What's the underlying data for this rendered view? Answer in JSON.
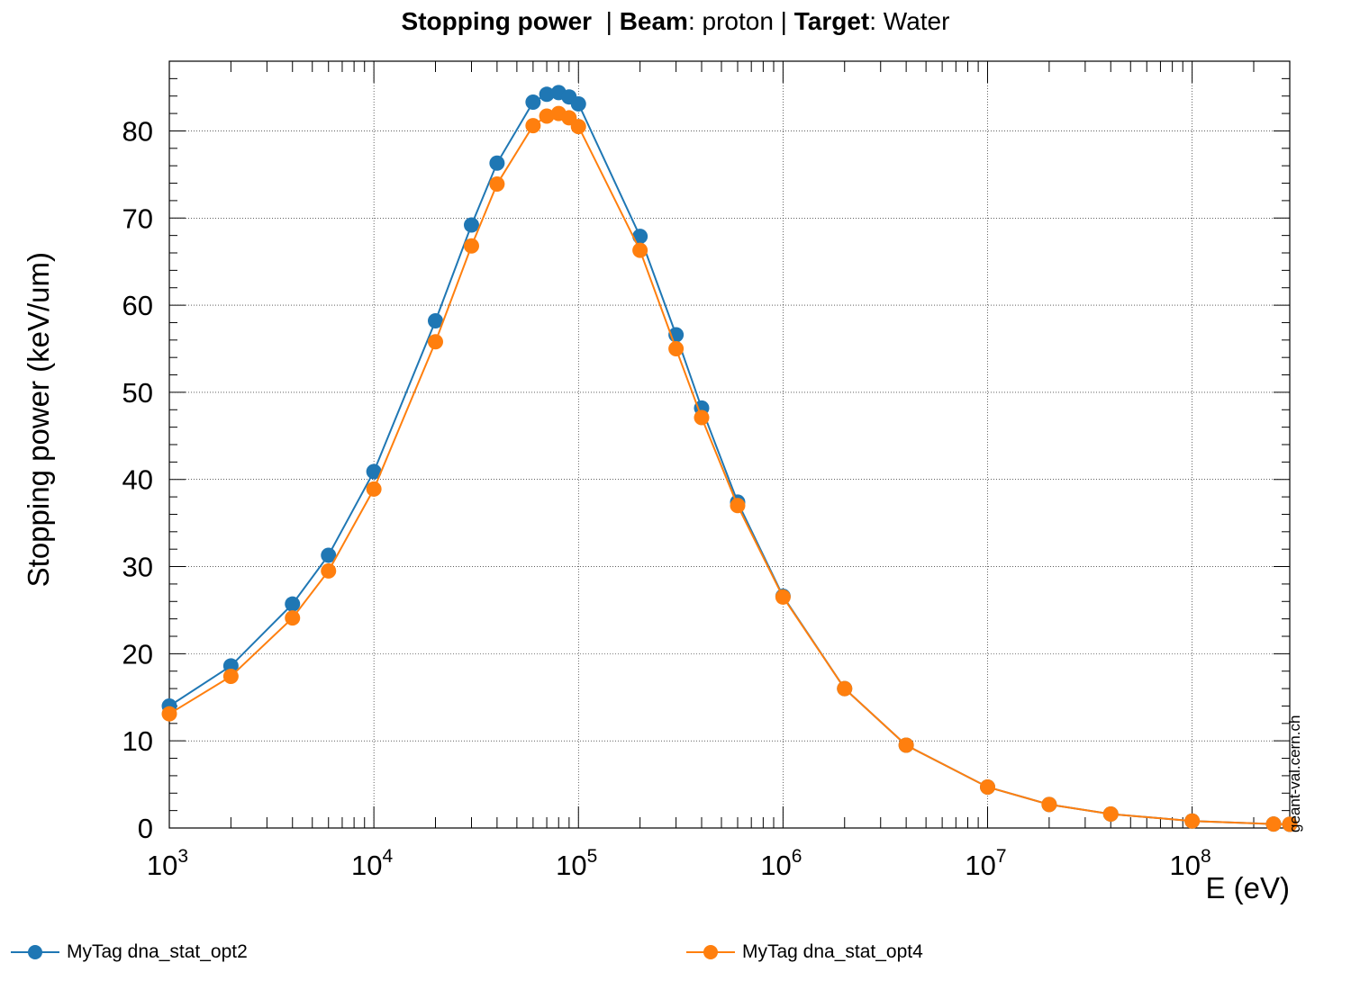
{
  "title_parts": {
    "part1_bold": "Stopping power",
    "sep1": "  | ",
    "part2_bold": "Beam",
    "part2_rest": ": proton | ",
    "part3_bold": "Target",
    "part3_rest": ": Water"
  },
  "watermark": "geant-val.cern.ch",
  "colors": {
    "series1": "#1f77b4",
    "series2": "#ff7f0e"
  },
  "chart_data": {
    "type": "line",
    "xlabel": "E (eV)",
    "ylabel": "Stopping power (keV/um)",
    "x_scale": "log",
    "xlim": [
      1000,
      300000000
    ],
    "ylim": [
      0,
      88
    ],
    "grid": true,
    "legend_position": "bottom",
    "y_ticks": [
      0,
      10,
      20,
      30,
      40,
      50,
      60,
      70,
      80
    ],
    "x_ticks": [
      {
        "value": 1000,
        "base": "10",
        "exp": "3"
      },
      {
        "value": 10000,
        "base": "10",
        "exp": "4"
      },
      {
        "value": 100000,
        "base": "10",
        "exp": "5"
      },
      {
        "value": 1000000,
        "base": "10",
        "exp": "6"
      },
      {
        "value": 10000000,
        "base": "10",
        "exp": "7"
      },
      {
        "value": 100000000,
        "base": "10",
        "exp": "8"
      }
    ],
    "series": [
      {
        "name": "MyTag dna_stat_opt2",
        "x": [
          1000,
          2000,
          4000,
          6000,
          10000,
          20000,
          30000,
          40000,
          60000,
          70000,
          80000,
          90000,
          100000,
          200000,
          300000,
          400000,
          600000,
          1000000,
          2000000,
          4000000,
          10000000,
          20000000,
          40000000,
          100000000,
          250000000,
          300000000
        ],
        "y": [
          14.0,
          18.6,
          25.7,
          31.3,
          40.9,
          58.2,
          69.2,
          76.3,
          83.3,
          84.2,
          84.4,
          83.9,
          83.1,
          67.9,
          56.6,
          48.2,
          37.4,
          26.6,
          16.0,
          9.5,
          4.7,
          2.7,
          1.6,
          0.8,
          0.45,
          0.43
        ]
      },
      {
        "name": "MyTag dna_stat_opt4",
        "x": [
          1000,
          2000,
          4000,
          6000,
          10000,
          20000,
          30000,
          40000,
          60000,
          70000,
          80000,
          90000,
          100000,
          200000,
          300000,
          400000,
          600000,
          1000000,
          2000000,
          4000000,
          10000000,
          20000000,
          40000000,
          100000000,
          250000000,
          300000000
        ],
        "y": [
          13.1,
          17.4,
          24.1,
          29.5,
          38.9,
          55.8,
          66.8,
          73.9,
          80.6,
          81.7,
          82.0,
          81.5,
          80.5,
          66.3,
          55.0,
          47.1,
          37.0,
          26.5,
          16.0,
          9.5,
          4.7,
          2.7,
          1.6,
          0.8,
          0.45,
          0.43
        ]
      }
    ]
  }
}
